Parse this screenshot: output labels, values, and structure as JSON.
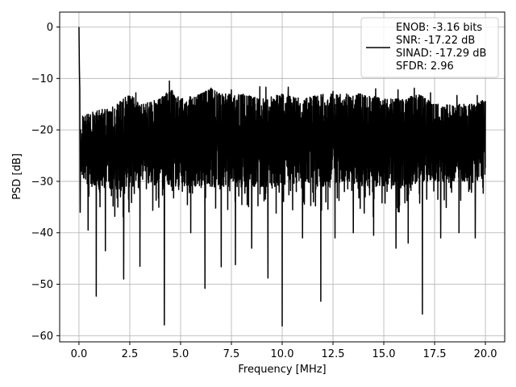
{
  "chart_data": {
    "type": "line",
    "title": "",
    "xlabel": "Frequency [MHz]",
    "ylabel": "PSD [dB]",
    "xlim": [
      -0.95,
      20.95
    ],
    "ylim": [
      -61.2,
      2.9
    ],
    "xticks": [
      0.0,
      2.5,
      5.0,
      7.5,
      10.0,
      12.5,
      15.0,
      17.5,
      20.0
    ],
    "xtick_labels": [
      "0.0",
      "2.5",
      "5.0",
      "7.5",
      "10.0",
      "12.5",
      "15.0",
      "17.5",
      "20.0"
    ],
    "yticks": [
      0,
      -10,
      -20,
      -30,
      -40,
      -50,
      -60
    ],
    "ytick_labels": [
      "0",
      "−10",
      "−20",
      "−30",
      "−40",
      "−50",
      "−60"
    ],
    "grid": true,
    "legend_position": "top-right",
    "colors": {
      "line": "#000000",
      "grid": "#b0b0b0",
      "frame": "#000000"
    },
    "series": [
      {
        "legend_lines": [
          "ENOB: -3.16 bits",
          "SNR: -17.22 dB",
          "SINAD: -17.29 dB",
          "SFDR: 2.96"
        ],
        "x": [
          0,
          0.02,
          0.04,
          0.06,
          0.08,
          0.1,
          0.12,
          0.15,
          0.2,
          0.3,
          0.4,
          0.5,
          0.7,
          0.85,
          1.0,
          1.2,
          1.5,
          1.8,
          2.0,
          2.2,
          2.5,
          2.8,
          3.0,
          3.3,
          3.6,
          4.0,
          4.2,
          4.5,
          5.0,
          5.5,
          6.0,
          6.2,
          6.5,
          7.0,
          7.5,
          7.7,
          8.0,
          8.5,
          9.0,
          9.3,
          9.6,
          10.0,
          10.5,
          11.0,
          11.5,
          11.9,
          12.3,
          12.7,
          13.0,
          13.5,
          14.0,
          14.5,
          15.0,
          15.5,
          16.0,
          16.5,
          16.9,
          17.3,
          17.7,
          18.0,
          18.5,
          19.0,
          19.5,
          20.0
        ],
        "y": [
          0,
          -8,
          -12,
          -15,
          -20,
          -25,
          -28,
          -22,
          -30,
          -24,
          -39,
          -21,
          -33,
          -28,
          -35,
          -26,
          -31,
          -22,
          -38,
          -29,
          -34,
          -27,
          -33,
          -25,
          -36,
          -29,
          -58,
          -31,
          -26,
          -34,
          -37,
          -28,
          -32,
          -29,
          -36,
          -28,
          -33,
          -30,
          -34,
          -27,
          -32,
          -58,
          -31,
          -35,
          -29,
          -36,
          -27,
          -33,
          -30,
          -34,
          -28,
          -35,
          -30,
          -33,
          -37,
          -29,
          -56,
          -31,
          -35,
          -28,
          -34,
          -30,
          -33,
          -27
        ]
      }
    ],
    "envelope_upper": [
      [
        0.3,
        -17
      ],
      [
        1.0,
        -16
      ],
      [
        1.5,
        -16
      ],
      [
        2.5,
        -13
      ],
      [
        3.0,
        -15
      ],
      [
        4.0,
        -14
      ],
      [
        4.5,
        -12
      ],
      [
        5.0,
        -14
      ],
      [
        6.0,
        -13
      ],
      [
        6.5,
        -12
      ],
      [
        7.0,
        -13
      ],
      [
        8.0,
        -13
      ],
      [
        9.0,
        -14
      ],
      [
        10.0,
        -13
      ],
      [
        11.0,
        -14
      ],
      [
        12.0,
        -13
      ],
      [
        13.0,
        -13
      ],
      [
        14.0,
        -13
      ],
      [
        15.0,
        -14
      ],
      [
        16.0,
        -14
      ],
      [
        16.7,
        -13
      ],
      [
        17.5,
        -15
      ],
      [
        18.5,
        -15
      ],
      [
        19.5,
        -15
      ],
      [
        20.0,
        -14
      ]
    ],
    "envelope_lower": [
      [
        0.3,
        -30
      ],
      [
        1.0,
        -31
      ],
      [
        2.0,
        -32
      ],
      [
        3.0,
        -30
      ],
      [
        4.0,
        -31
      ],
      [
        5.0,
        -31
      ],
      [
        6.0,
        -31
      ],
      [
        7.0,
        -31
      ],
      [
        8.0,
        -31
      ],
      [
        9.0,
        -31
      ],
      [
        10.0,
        -31
      ],
      [
        11.0,
        -30
      ],
      [
        12.0,
        -31
      ],
      [
        13.0,
        -30
      ],
      [
        14.0,
        -31
      ],
      [
        15.0,
        -31
      ],
      [
        16.0,
        -31
      ],
      [
        17.0,
        -30
      ],
      [
        18.0,
        -30
      ],
      [
        19.0,
        -30
      ],
      [
        20.0,
        -29
      ]
    ],
    "dips": [
      [
        0.06,
        -36
      ],
      [
        0.45,
        -39.5
      ],
      [
        0.85,
        -52.3
      ],
      [
        1.3,
        -43.5
      ],
      [
        2.2,
        -49
      ],
      [
        3.0,
        -46.5
      ],
      [
        4.2,
        -57.9
      ],
      [
        5.5,
        -40
      ],
      [
        6.2,
        -50.8
      ],
      [
        7.0,
        -46.6
      ],
      [
        7.7,
        -46.2
      ],
      [
        8.5,
        -43
      ],
      [
        9.3,
        -48.8
      ],
      [
        10.0,
        -58.1
      ],
      [
        11.0,
        -41
      ],
      [
        11.9,
        -53.3
      ],
      [
        12.6,
        -41
      ],
      [
        13.5,
        -40
      ],
      [
        14.5,
        -40.5
      ],
      [
        15.6,
        -43
      ],
      [
        16.2,
        -42
      ],
      [
        16.9,
        -55.8
      ],
      [
        17.8,
        -41
      ],
      [
        18.7,
        -40
      ],
      [
        19.5,
        -41
      ]
    ],
    "peaks": [
      [
        2.8,
        -12.8
      ],
      [
        4.45,
        -10.5
      ],
      [
        6.5,
        -11.9
      ],
      [
        7.5,
        -12.2
      ],
      [
        8.9,
        -11.6
      ],
      [
        9.2,
        -11.7
      ],
      [
        10.3,
        -11.7
      ],
      [
        12.5,
        -12.5
      ],
      [
        14.6,
        -12.0
      ],
      [
        15.7,
        -12.2
      ],
      [
        16.5,
        -11.9
      ],
      [
        17.3,
        -12.8
      ],
      [
        18.6,
        -13.3
      ],
      [
        19.6,
        -13.3
      ],
      [
        20.0,
        -14.4
      ]
    ]
  }
}
